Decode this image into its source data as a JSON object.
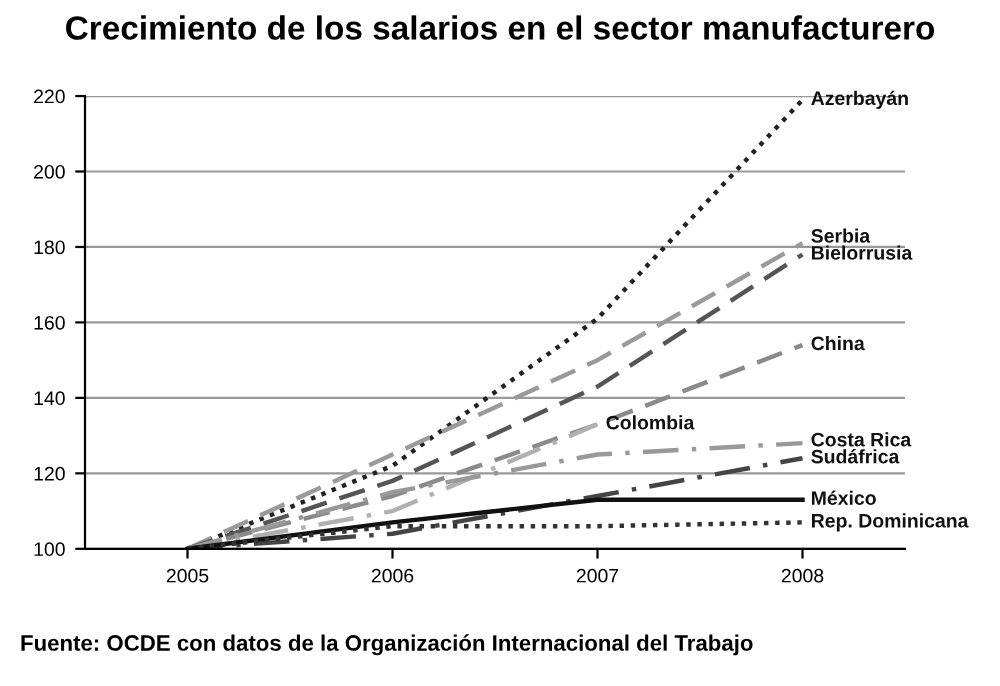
{
  "chart_data": {
    "type": "line",
    "title": "Crecimiento de los salarios en el sector manufacturero",
    "categories": [
      "2005",
      "2006",
      "2007",
      "2008"
    ],
    "series": [
      {
        "name": "Azerbayán",
        "color": "#222222",
        "line_style": "dotted",
        "values": [
          100,
          122,
          161,
          219
        ]
      },
      {
        "name": "Serbia",
        "color": "#9a9a9a",
        "line_style": "dashed",
        "values": [
          100,
          125,
          150,
          181
        ]
      },
      {
        "name": "Bielorrusia",
        "color": "#555555",
        "line_style": "dashed",
        "values": [
          100,
          118,
          143,
          178
        ]
      },
      {
        "name": "China",
        "color": "#8a8a8a",
        "line_style": "dashed",
        "values": [
          100,
          114,
          133,
          154
        ]
      },
      {
        "name": "Colombia",
        "color": "#b0b0b0",
        "line_style": "dashdot",
        "values": [
          100,
          110,
          133,
          null
        ]
      },
      {
        "name": "Costa Rica",
        "color": "#999999",
        "line_style": "dashdot",
        "values": [
          100,
          115,
          125,
          128
        ]
      },
      {
        "name": "Sudáfrica",
        "color": "#444444",
        "line_style": "dashdot",
        "values": [
          100,
          104,
          114,
          124
        ]
      },
      {
        "name": "México",
        "color": "#111111",
        "line_style": "solid",
        "values": [
          100,
          107,
          113,
          113
        ]
      },
      {
        "name": "Rep. Dominicana",
        "color": "#333333",
        "line_style": "dotted",
        "values": [
          100,
          106,
          106,
          107
        ]
      }
    ],
    "ylim": [
      100,
      220
    ],
    "yticks": [
      100,
      120,
      140,
      160,
      180,
      200,
      220
    ],
    "grid": "y",
    "legend": false,
    "annotations": [
      "Fuente: OCDE con datos de la Organización Internacional del Trabajo"
    ]
  }
}
